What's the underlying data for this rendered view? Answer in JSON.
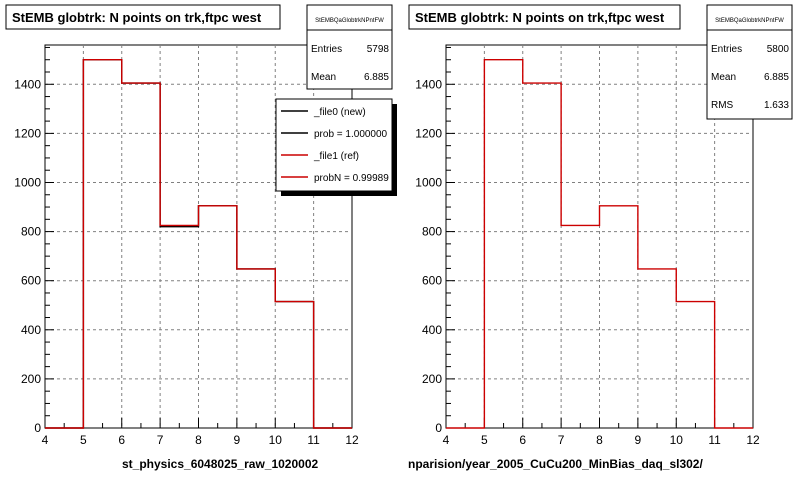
{
  "footer_note": "",
  "bottom_labels": {
    "left": "st_physics_6048025_raw_1020002",
    "right": "nparision/year_2005_CuCu200_MinBias_daq_sl302/"
  },
  "colors": {
    "red": "#cc0000",
    "black": "#000000",
    "grid": "#808080",
    "shadow": "#000000"
  },
  "chart_data": [
    {
      "type": "histogram",
      "title": "StEMB globtrk: N points on trk,ftpc west",
      "xlim": [
        4,
        12
      ],
      "ylim": [
        0,
        1560
      ],
      "x_ticks": [
        "4",
        "5",
        "6",
        "7",
        "8",
        "9",
        "10",
        "11",
        "12"
      ],
      "y_ticks": [
        "0",
        "200",
        "400",
        "600",
        "800",
        "1000",
        "1200",
        "1400"
      ],
      "grid": true,
      "bins": [
        4,
        5,
        6,
        7,
        8,
        9,
        10,
        11,
        12
      ],
      "series": [
        {
          "name": "_file0 (new)",
          "color": "#000000",
          "values": [
            0,
            1500,
            1405,
            820,
            905,
            648,
            515,
            0
          ]
        },
        {
          "name": "_file1 (ref)",
          "color": "#cc0000",
          "values": [
            0,
            1500,
            1405,
            825,
            905,
            648,
            515,
            0
          ]
        }
      ],
      "stats": {
        "name": "StEMBQaGlobtrkNPntFW",
        "entries_label": "Entries",
        "entries": "5798",
        "mean_label": "Mean",
        "mean": "6.885"
      },
      "legend": {
        "entries": [
          {
            "label": "_file0 (new)",
            "color": "#000000"
          },
          {
            "label": "prob = 1.000000",
            "color": "#000000"
          },
          {
            "label": "_file1 (ref)",
            "color": "#cc0000"
          },
          {
            "label": "probN = 0.99989",
            "color": "#cc0000"
          }
        ]
      }
    },
    {
      "type": "histogram",
      "title": "StEMB globtrk: N points on trk,ftpc west",
      "xlim": [
        4,
        12
      ],
      "ylim": [
        0,
        1560
      ],
      "x_ticks": [
        "4",
        "5",
        "6",
        "7",
        "8",
        "9",
        "10",
        "11",
        "12"
      ],
      "y_ticks": [
        "0",
        "200",
        "400",
        "600",
        "800",
        "1000",
        "1200",
        "1400"
      ],
      "grid": true,
      "bins": [
        4,
        5,
        6,
        7,
        8,
        9,
        10,
        11,
        12
      ],
      "series": [
        {
          "name": "",
          "color": "#cc0000",
          "values": [
            0,
            1500,
            1405,
            825,
            905,
            648,
            515,
            0
          ]
        }
      ],
      "stats": {
        "name": "StEMBQaGlobtrkNPntFW",
        "entries_label": "Entries",
        "entries": "5800",
        "mean_label": "Mean",
        "mean": "6.885",
        "rms_label": "RMS",
        "rms": "1.633"
      }
    }
  ]
}
